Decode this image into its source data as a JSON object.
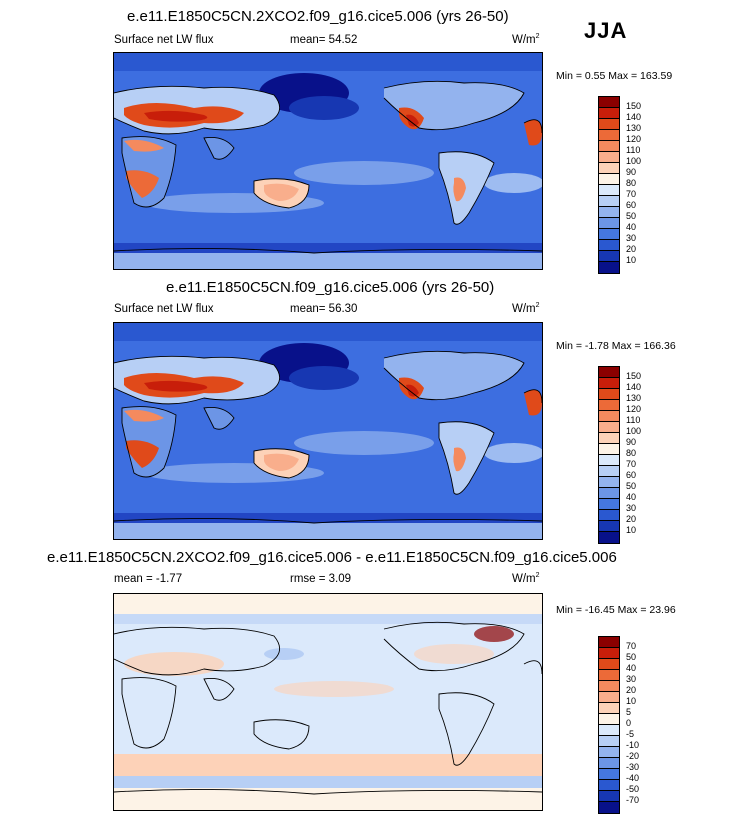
{
  "season": "JJA",
  "colors": {
    "land_contour": "#000000",
    "ocean_base": "#3d6ee0",
    "warm": "#c8341a",
    "diff_base": "#d9e6f7"
  },
  "panels": [
    {
      "title": "e.e11.E1850C5CN.2XCO2.f09_g16.cice5.006 (yrs 26-50)",
      "left_label": "Surface net LW flux",
      "mean_label": "mean=  54.52",
      "units_base": "W/m",
      "units_sup": "2",
      "minmax": "Min =   0.55 Max = 163.59",
      "colorbar_labels": [
        "150",
        "140",
        "130",
        "120",
        "110",
        "100",
        "90",
        "80",
        "70",
        "60",
        "50",
        "40",
        "30",
        "20",
        "10"
      ],
      "colorbar_colors": [
        "#8b0000",
        "#c81e0a",
        "#e04a1a",
        "#ec6a38",
        "#f48a5e",
        "#f9ae8c",
        "#fdd2b8",
        "#fdf3e7",
        "#dbe9fb",
        "#b7cff5",
        "#93b3ee",
        "#6c95e6",
        "#4577e0",
        "#2a58d0",
        "#1737b2",
        "#08118a"
      ]
    },
    {
      "title": "e.e11.E1850C5CN.f09_g16.cice5.006 (yrs 26-50)",
      "left_label": "Surface net LW flux",
      "mean_label": "mean=  56.30",
      "units_base": "W/m",
      "units_sup": "2",
      "minmax": "Min =  -1.78 Max = 166.36",
      "colorbar_labels": [
        "150",
        "140",
        "130",
        "120",
        "110",
        "100",
        "90",
        "80",
        "70",
        "60",
        "50",
        "40",
        "30",
        "20",
        "10"
      ],
      "colorbar_colors": [
        "#8b0000",
        "#c81e0a",
        "#e04a1a",
        "#ec6a38",
        "#f48a5e",
        "#f9ae8c",
        "#fdd2b8",
        "#fdf3e7",
        "#dbe9fb",
        "#b7cff5",
        "#93b3ee",
        "#6c95e6",
        "#4577e0",
        "#2a58d0",
        "#1737b2",
        "#08118a"
      ]
    },
    {
      "title": "e.e11.E1850C5CN.2XCO2.f09_g16.cice5.006 - e.e11.E1850C5CN.f09_g16.cice5.006",
      "left_label": "mean =  -1.77",
      "mean_label": "rmse =   3.09",
      "units_base": "W/m",
      "units_sup": "2",
      "minmax": "Min = -16.45 Max =  23.96",
      "colorbar_labels": [
        "70",
        "50",
        "40",
        "30",
        "20",
        "10",
        "5",
        "0",
        "-5",
        "-10",
        "-20",
        "-30",
        "-40",
        "-50",
        "-70"
      ],
      "colorbar_colors": [
        "#8b0000",
        "#c81e0a",
        "#e04a1a",
        "#ec6a38",
        "#f48a5e",
        "#f9ae8c",
        "#fdd2b8",
        "#fdf3e7",
        "#dbe9fb",
        "#b7cff5",
        "#93b3ee",
        "#6c95e6",
        "#4577e0",
        "#2a58d0",
        "#1737b2",
        "#08118a"
      ]
    }
  ]
}
